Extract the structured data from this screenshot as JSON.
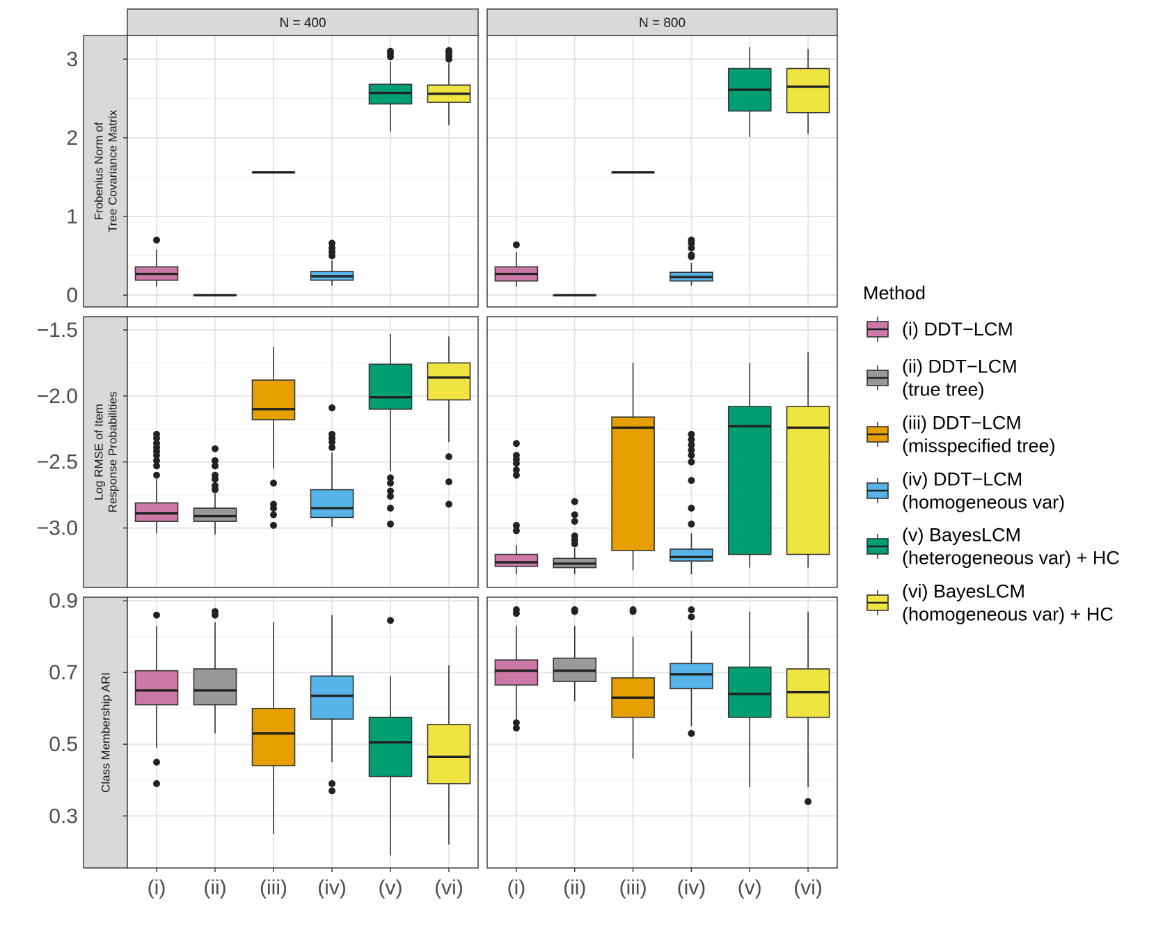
{
  "chart_data": {
    "type": "boxplot",
    "facet_columns": [
      "N = 400",
      "N = 800"
    ],
    "categories": [
      "(i)",
      "(ii)",
      "(iii)",
      "(iv)",
      "(v)",
      "(vi)"
    ],
    "legend": {
      "title": "Method",
      "items": [
        {
          "lines": [
            "(i) DDT−LCM"
          ],
          "color": "#CC79A7"
        },
        {
          "lines": [
            "(ii) DDT−LCM",
            "(true tree)"
          ],
          "color": "#999999"
        },
        {
          "lines": [
            "(iii) DDT−LCM",
            "(misspecified tree)"
          ],
          "color": "#E69F00"
        },
        {
          "lines": [
            "(iv) DDT−LCM",
            "(homogeneous var)"
          ],
          "color": "#56B4E9"
        },
        {
          "lines": [
            "(v) BayesLCM",
            "(heterogeneous var) + HC"
          ],
          "color": "#009E73"
        },
        {
          "lines": [
            "(vi) BayesLCM",
            "(homogeneous var) + HC"
          ],
          "color": "#F0E442"
        }
      ]
    },
    "rows": [
      {
        "label_lines": [
          "Frobenius Norm of",
          "Tree Covariance Matrix"
        ],
        "ylim": [
          -0.15,
          3.3
        ],
        "yticks": [
          0,
          1,
          2,
          3
        ],
        "ytick_labels": [
          "0",
          "1",
          "2",
          "3"
        ],
        "panels": [
          [
            {
              "lo": 0.11,
              "q1": 0.19,
              "med": 0.27,
              "q3": 0.36,
              "hi": 0.58,
              "out": [
                0.7
              ]
            },
            {
              "lo": 0.0,
              "q1": 0.0,
              "med": 0.0,
              "q3": 0.0,
              "hi": 0.0,
              "out": []
            },
            {
              "lo": 1.56,
              "q1": 1.56,
              "med": 1.56,
              "q3": 1.56,
              "hi": 1.56,
              "out": []
            },
            {
              "lo": 0.12,
              "q1": 0.19,
              "med": 0.24,
              "q3": 0.3,
              "hi": 0.44,
              "out": [
                0.5,
                0.55,
                0.6,
                0.66
              ]
            },
            {
              "lo": 2.08,
              "q1": 2.43,
              "med": 2.57,
              "q3": 2.68,
              "hi": 2.97,
              "out": [
                3.03,
                3.07,
                3.1
              ]
            },
            {
              "lo": 2.16,
              "q1": 2.45,
              "med": 2.56,
              "q3": 2.67,
              "hi": 2.95,
              "out": [
                3.0,
                3.04,
                3.08,
                3.11
              ]
            }
          ],
          [
            {
              "lo": 0.11,
              "q1": 0.18,
              "med": 0.27,
              "q3": 0.36,
              "hi": 0.55,
              "out": [
                0.64
              ]
            },
            {
              "lo": 0.0,
              "q1": 0.0,
              "med": 0.0,
              "q3": 0.0,
              "hi": 0.0,
              "out": []
            },
            {
              "lo": 1.56,
              "q1": 1.56,
              "med": 1.56,
              "q3": 1.56,
              "hi": 1.56,
              "out": []
            },
            {
              "lo": 0.12,
              "q1": 0.18,
              "med": 0.23,
              "q3": 0.29,
              "hi": 0.41,
              "out": [
                0.49,
                0.51,
                0.6,
                0.66,
                0.7
              ]
            },
            {
              "lo": 2.01,
              "q1": 2.34,
              "med": 2.61,
              "q3": 2.88,
              "hi": 3.15,
              "out": []
            },
            {
              "lo": 2.05,
              "q1": 2.32,
              "med": 2.65,
              "q3": 2.88,
              "hi": 3.13,
              "out": []
            }
          ]
        ]
      },
      {
        "label_lines": [
          "Log RMSE of Item",
          "Response Probabilities"
        ],
        "ylim": [
          -3.45,
          -1.4
        ],
        "yticks": [
          -3.0,
          -2.5,
          -2.0,
          -1.5
        ],
        "ytick_labels": [
          "−3.0",
          "−2.5",
          "−2.0",
          "−1.5"
        ],
        "panels": [
          [
            {
              "lo": -3.04,
              "q1": -2.95,
              "med": -2.89,
              "q3": -2.81,
              "hi": -2.63,
              "out": [
                -2.29,
                -2.32,
                -2.36,
                -2.39,
                -2.42,
                -2.45,
                -2.49,
                -2.53,
                -2.6
              ]
            },
            {
              "lo": -3.05,
              "q1": -2.95,
              "med": -2.91,
              "q3": -2.85,
              "hi": -2.74,
              "out": [
                -2.4,
                -2.49,
                -2.53,
                -2.6,
                -2.63,
                -2.68,
                -2.71
              ]
            },
            {
              "lo": -2.55,
              "q1": -2.18,
              "med": -2.1,
              "q3": -1.88,
              "hi": -1.63,
              "out": [
                -2.66,
                -2.82,
                -2.85,
                -2.9,
                -2.98
              ]
            },
            {
              "lo": -2.99,
              "q1": -2.92,
              "med": -2.85,
              "q3": -2.71,
              "hi": -2.43,
              "out": [
                -2.09,
                -2.29,
                -2.32,
                -2.35,
                -2.39
              ]
            },
            {
              "lo": -2.57,
              "q1": -2.1,
              "med": -2.01,
              "q3": -1.76,
              "hi": -1.53,
              "out": [
                -2.62,
                -2.66,
                -2.72,
                -2.76,
                -2.85,
                -2.97
              ]
            },
            {
              "lo": -2.35,
              "q1": -2.03,
              "med": -1.86,
              "q3": -1.75,
              "hi": -1.55,
              "out": [
                -2.46,
                -2.65,
                -2.82
              ]
            }
          ],
          [
            {
              "lo": -3.35,
              "q1": -3.29,
              "med": -3.26,
              "q3": -3.2,
              "hi": -3.13,
              "out": [
                -2.36,
                -2.45,
                -2.48,
                -2.51,
                -2.56,
                -2.6,
                -2.98,
                -3.02
              ]
            },
            {
              "lo": -3.35,
              "q1": -3.3,
              "med": -3.27,
              "q3": -3.23,
              "hi": -3.15,
              "out": [
                -2.8,
                -2.9,
                -2.95,
                -3.06,
                -3.09,
                -3.12
              ]
            },
            {
              "lo": -3.32,
              "q1": -3.17,
              "med": -2.24,
              "q3": -2.16,
              "hi": -1.75,
              "out": []
            },
            {
              "lo": -3.35,
              "q1": -3.25,
              "med": -3.22,
              "q3": -3.16,
              "hi": -3.04,
              "out": [
                -2.29,
                -2.33,
                -2.37,
                -2.41,
                -2.45,
                -2.5,
                -2.64,
                -2.85,
                -2.97
              ]
            },
            {
              "lo": -3.3,
              "q1": -3.2,
              "med": -2.23,
              "q3": -2.08,
              "hi": -1.75,
              "out": []
            },
            {
              "lo": -3.3,
              "q1": -3.2,
              "med": -2.24,
              "q3": -2.08,
              "hi": -1.67,
              "out": []
            }
          ]
        ]
      },
      {
        "label_lines": [
          "Class Membership ARI"
        ],
        "ylim": [
          0.155,
          0.91
        ],
        "yticks": [
          0.3,
          0.5,
          0.7,
          0.9
        ],
        "ytick_labels": [
          "0.3",
          "0.5",
          "0.7",
          "0.9"
        ],
        "panels": [
          [
            {
              "lo": 0.49,
              "q1": 0.61,
              "med": 0.65,
              "q3": 0.705,
              "hi": 0.83,
              "out": [
                0.86,
                0.45,
                0.39
              ]
            },
            {
              "lo": 0.53,
              "q1": 0.61,
              "med": 0.65,
              "q3": 0.71,
              "hi": 0.84,
              "out": [
                0.87,
                0.86
              ]
            },
            {
              "lo": 0.25,
              "q1": 0.44,
              "med": 0.53,
              "q3": 0.6,
              "hi": 0.84,
              "out": []
            },
            {
              "lo": 0.45,
              "q1": 0.57,
              "med": 0.635,
              "q3": 0.69,
              "hi": 0.86,
              "out": [
                0.39,
                0.37
              ]
            },
            {
              "lo": 0.19,
              "q1": 0.41,
              "med": 0.505,
              "q3": 0.575,
              "hi": 0.69,
              "out": [
                0.845
              ]
            },
            {
              "lo": 0.22,
              "q1": 0.39,
              "med": 0.465,
              "q3": 0.555,
              "hi": 0.72,
              "out": []
            }
          ],
          [
            {
              "lo": 0.57,
              "q1": 0.665,
              "med": 0.705,
              "q3": 0.735,
              "hi": 0.83,
              "out": [
                0.875,
                0.865,
                0.56,
                0.545
              ]
            },
            {
              "lo": 0.62,
              "q1": 0.675,
              "med": 0.705,
              "q3": 0.74,
              "hi": 0.83,
              "out": [
                0.875,
                0.87
              ]
            },
            {
              "lo": 0.46,
              "q1": 0.575,
              "med": 0.63,
              "q3": 0.685,
              "hi": 0.8,
              "out": [
                0.875,
                0.87
              ]
            },
            {
              "lo": 0.55,
              "q1": 0.655,
              "med": 0.695,
              "q3": 0.725,
              "hi": 0.815,
              "out": [
                0.875,
                0.855,
                0.53
              ]
            },
            {
              "lo": 0.38,
              "q1": 0.575,
              "med": 0.64,
              "q3": 0.715,
              "hi": 0.87,
              "out": []
            },
            {
              "lo": 0.38,
              "q1": 0.575,
              "med": 0.645,
              "q3": 0.71,
              "hi": 0.87,
              "out": [
                0.34
              ]
            }
          ]
        ]
      }
    ]
  }
}
